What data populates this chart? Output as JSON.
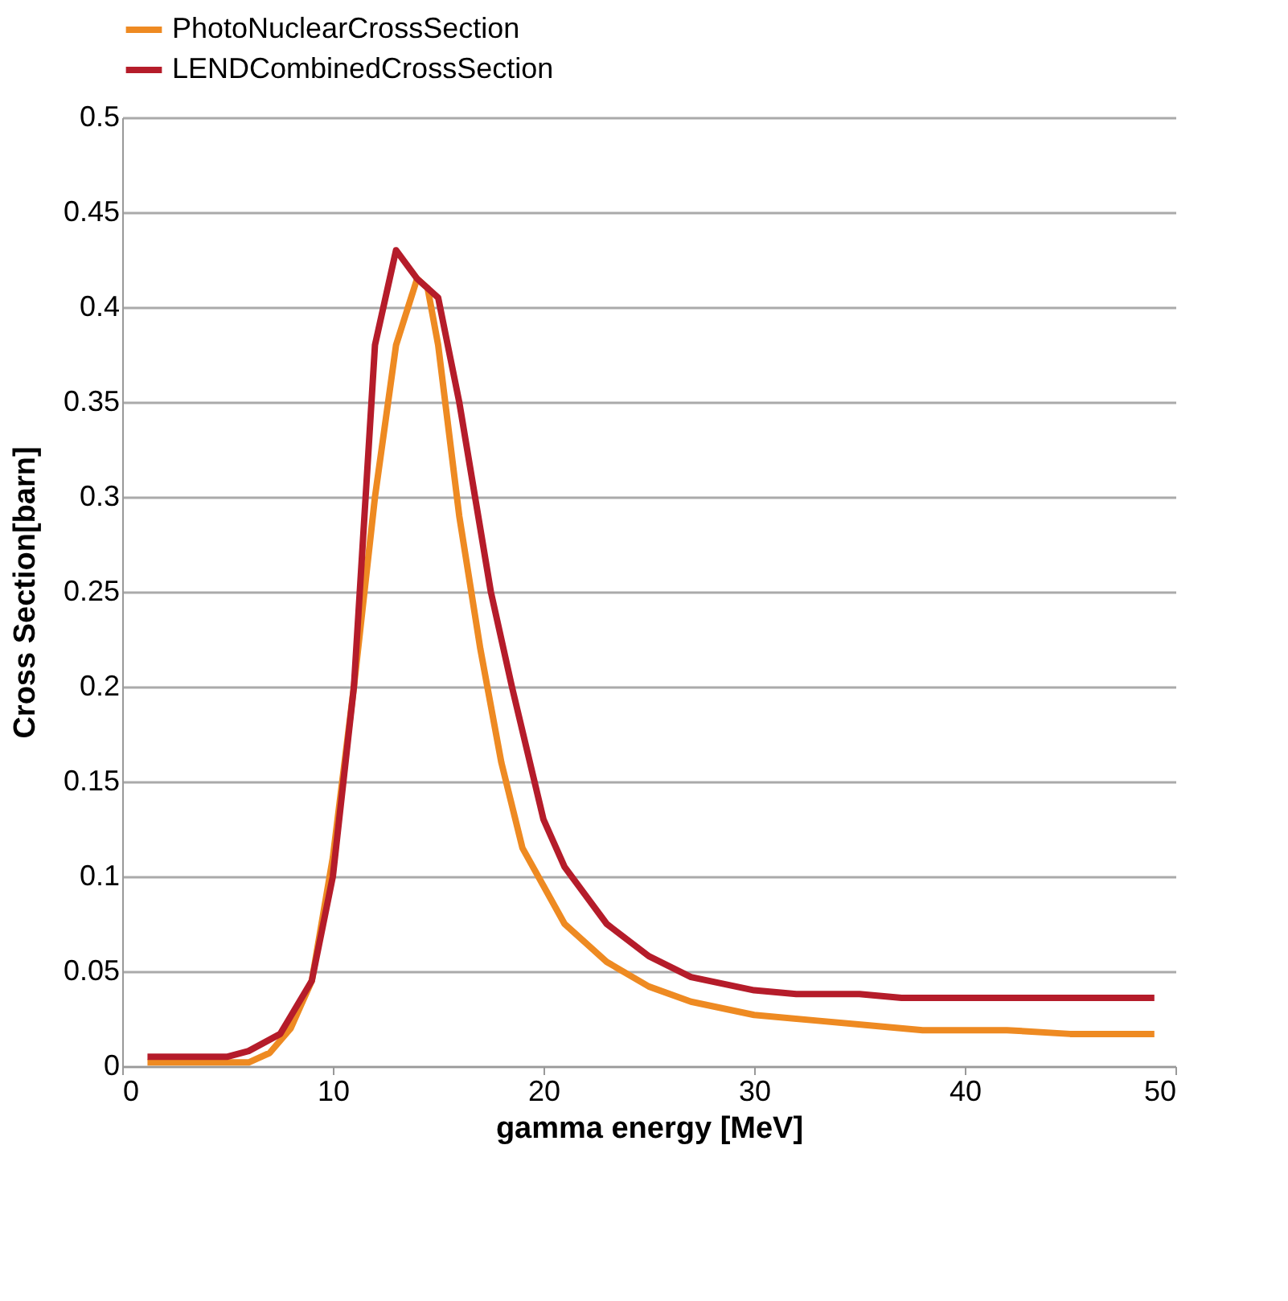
{
  "chart_data": {
    "type": "line",
    "xlabel": "gamma energy [MeV]",
    "ylabel": "Cross Section[barn]",
    "xlim": [
      0,
      50
    ],
    "xticks": [
      0,
      10,
      20,
      30,
      40,
      50
    ],
    "ylim": [
      0,
      0.5
    ],
    "yticks": [
      0,
      0.05,
      0.1,
      0.15,
      0.2,
      0.25,
      0.3,
      0.35,
      0.4,
      0.45,
      0.5
    ],
    "grid": "y",
    "legend": "top",
    "marker": "none",
    "line_style": "solid",
    "series": [
      {
        "name": "PhotoNuclearCrossSection",
        "color": "#ee8a22",
        "x": [
          1.2,
          6,
          7,
          8,
          9,
          10,
          11,
          12,
          13,
          14,
          14.5,
          15,
          16,
          17,
          18,
          19,
          20,
          21,
          23,
          25,
          27,
          30,
          33,
          36,
          38,
          42,
          45,
          49
        ],
        "values": [
          0.002,
          0.002,
          0.007,
          0.02,
          0.045,
          0.11,
          0.2,
          0.3,
          0.38,
          0.415,
          0.41,
          0.38,
          0.29,
          0.22,
          0.16,
          0.115,
          0.095,
          0.075,
          0.055,
          0.042,
          0.034,
          0.027,
          0.024,
          0.021,
          0.019,
          0.019,
          0.017,
          0.017
        ]
      },
      {
        "name": "LENDCombinedCrossSection",
        "color": "#b51c2a",
        "x": [
          1.2,
          5,
          6,
          7.5,
          9,
          10,
          11,
          12,
          13,
          14,
          15,
          16,
          17.5,
          18.5,
          20,
          21,
          23,
          25,
          27,
          30,
          32,
          35,
          37,
          49
        ],
        "values": [
          0.005,
          0.005,
          0.008,
          0.017,
          0.045,
          0.1,
          0.2,
          0.38,
          0.43,
          0.415,
          0.405,
          0.35,
          0.25,
          0.2,
          0.13,
          0.105,
          0.075,
          0.058,
          0.047,
          0.04,
          0.038,
          0.038,
          0.036,
          0.036
        ]
      }
    ]
  }
}
